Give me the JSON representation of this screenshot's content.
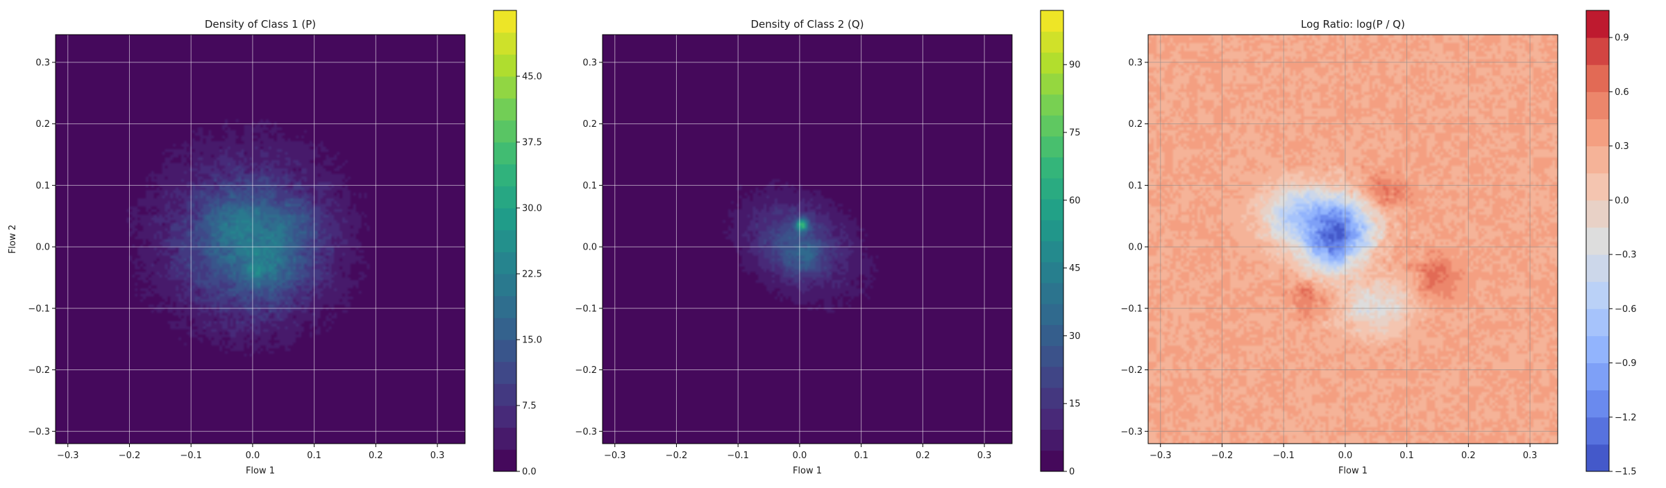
{
  "chart_data": [
    {
      "type": "heatmap",
      "title": "Density of Class 1 (P)",
      "xlabel": "Flow 1",
      "ylabel": "Flow 2",
      "xlim": [
        -0.32,
        0.345
      ],
      "ylim": [
        -0.32,
        0.345
      ],
      "xticks": [
        -0.3,
        -0.2,
        -0.1,
        0.0,
        0.1,
        0.2,
        0.3
      ],
      "yticks": [
        -0.3,
        -0.2,
        -0.1,
        0.0,
        0.1,
        0.2,
        0.3
      ],
      "xtick_labels": [
        "−0.3",
        "−0.2",
        "−0.1",
        "0.0",
        "0.1",
        "0.2",
        "0.3"
      ],
      "ytick_labels": [
        "−0.3",
        "−0.2",
        "−0.1",
        "0.0",
        "0.1",
        "0.2",
        "0.3"
      ],
      "grid": true,
      "colormap": "viridis",
      "colorbar": {
        "min": 0,
        "max": 52.5,
        "ticks": [
          0,
          7.5,
          15,
          22.5,
          30,
          37.5,
          45
        ],
        "tick_labels": [
          "0.0",
          "7.5",
          "15.0",
          "22.5",
          "30.0",
          "37.5",
          "45.0"
        ],
        "levels": 21
      },
      "blobs": [
        {
          "cx": -0.01,
          "cy": 0.02,
          "sx": 0.12,
          "sy": 0.115,
          "rot": 0,
          "amp": 7
        },
        {
          "cx": 0.0,
          "cy": 0.0,
          "sx": 0.07,
          "sy": 0.07,
          "rot": 0,
          "amp": 11
        },
        {
          "cx": -0.03,
          "cy": 0.04,
          "sx": 0.035,
          "sy": 0.03,
          "rot": 0,
          "amp": 6
        },
        {
          "cx": 0.03,
          "cy": -0.03,
          "sx": 0.03,
          "sy": 0.03,
          "rot": 0,
          "amp": 6
        },
        {
          "cx": 0.07,
          "cy": 0.04,
          "sx": 0.03,
          "sy": 0.025,
          "rot": 0,
          "amp": 4
        },
        {
          "cx": 0.005,
          "cy": -0.04,
          "sx": 0.01,
          "sy": 0.012,
          "rot": 0,
          "amp": 6
        }
      ],
      "noise": 3.5
    },
    {
      "type": "heatmap",
      "title": "Density of Class 2 (Q)",
      "xlabel": "Flow 1",
      "ylabel": "",
      "xlim": [
        -0.32,
        0.345
      ],
      "ylim": [
        -0.32,
        0.345
      ],
      "xticks": [
        -0.3,
        -0.2,
        -0.1,
        0.0,
        0.1,
        0.2,
        0.3
      ],
      "yticks": [
        -0.3,
        -0.2,
        -0.1,
        0.0,
        0.1,
        0.2,
        0.3
      ],
      "xtick_labels": [
        "−0.3",
        "−0.2",
        "−0.1",
        "0.0",
        "0.1",
        "0.2",
        "0.3"
      ],
      "ytick_labels": [
        "−0.3",
        "−0.2",
        "−0.1",
        "0.0",
        "0.1",
        "0.2",
        "0.3"
      ],
      "grid": true,
      "colormap": "viridis",
      "colorbar": {
        "min": 0,
        "max": 102,
        "ticks": [
          0,
          15,
          30,
          45,
          60,
          75,
          90
        ],
        "tick_labels": [
          "0",
          "15",
          "30",
          "45",
          "60",
          "75",
          "90"
        ],
        "levels": 22
      },
      "blobs": [
        {
          "cx": 0.0,
          "cy": 0.0,
          "sx": 0.1,
          "sy": 0.06,
          "rot": -0.6,
          "amp": 9
        },
        {
          "cx": 0.0,
          "cy": 0.01,
          "sx": 0.05,
          "sy": 0.04,
          "rot": -0.5,
          "amp": 14
        },
        {
          "cx": -0.01,
          "cy": -0.02,
          "sx": 0.025,
          "sy": 0.025,
          "rot": 0,
          "amp": 8
        },
        {
          "cx": 0.004,
          "cy": 0.036,
          "sx": 0.007,
          "sy": 0.007,
          "rot": 0,
          "amp": 48
        },
        {
          "cx": 0.015,
          "cy": -0.015,
          "sx": 0.012,
          "sy": 0.012,
          "rot": 0,
          "amp": 10
        }
      ],
      "noise": 5
    },
    {
      "type": "heatmap",
      "title": "Log Ratio: log(P / Q)",
      "xlabel": "Flow 1",
      "ylabel": "",
      "xlim": [
        -0.32,
        0.345
      ],
      "ylim": [
        -0.32,
        0.345
      ],
      "xticks": [
        -0.3,
        -0.2,
        -0.1,
        0.0,
        0.1,
        0.2,
        0.3
      ],
      "yticks": [
        -0.3,
        -0.2,
        -0.1,
        0.0,
        0.1,
        0.2,
        0.3
      ],
      "xtick_labels": [
        "−0.3",
        "−0.2",
        "−0.1",
        "0.0",
        "0.1",
        "0.2",
        "0.3"
      ],
      "ytick_labels": [
        "−0.3",
        "−0.2",
        "−0.1",
        "0.0",
        "0.1",
        "0.2",
        "0.3"
      ],
      "grid": true,
      "colormap": "coolwarm",
      "colorbar": {
        "min": -1.5,
        "max": 1.05,
        "ticks": [
          -1.5,
          -1.2,
          -0.9,
          -0.6,
          -0.3,
          0.0,
          0.3,
          0.6,
          0.9
        ],
        "tick_labels": [
          "−1.5",
          "−1.2",
          "−0.9",
          "−0.6",
          "−0.3",
          "0.0",
          "0.3",
          "0.6",
          "0.9"
        ],
        "levels": 17
      },
      "base": 0.3,
      "blobs": [
        {
          "cx": -0.07,
          "cy": 0.05,
          "sx": 0.045,
          "sy": 0.035,
          "rot": 0,
          "amp": -0.9
        },
        {
          "cx": 0.0,
          "cy": 0.03,
          "sx": 0.035,
          "sy": 0.035,
          "rot": 0,
          "amp": -1.1
        },
        {
          "cx": -0.03,
          "cy": -0.01,
          "sx": 0.03,
          "sy": 0.03,
          "rot": 0,
          "amp": -0.7
        },
        {
          "cx": 0.05,
          "cy": -0.1,
          "sx": 0.04,
          "sy": 0.03,
          "rot": 0,
          "amp": -0.55
        },
        {
          "cx": 0.06,
          "cy": 0.09,
          "sx": 0.025,
          "sy": 0.02,
          "rot": 0,
          "amp": 0.35
        },
        {
          "cx": 0.15,
          "cy": -0.05,
          "sx": 0.025,
          "sy": 0.025,
          "rot": 0,
          "amp": 0.35
        },
        {
          "cx": -0.06,
          "cy": -0.08,
          "sx": 0.02,
          "sy": 0.02,
          "rot": 0,
          "amp": 0.3
        }
      ],
      "noise": 0.25
    }
  ]
}
